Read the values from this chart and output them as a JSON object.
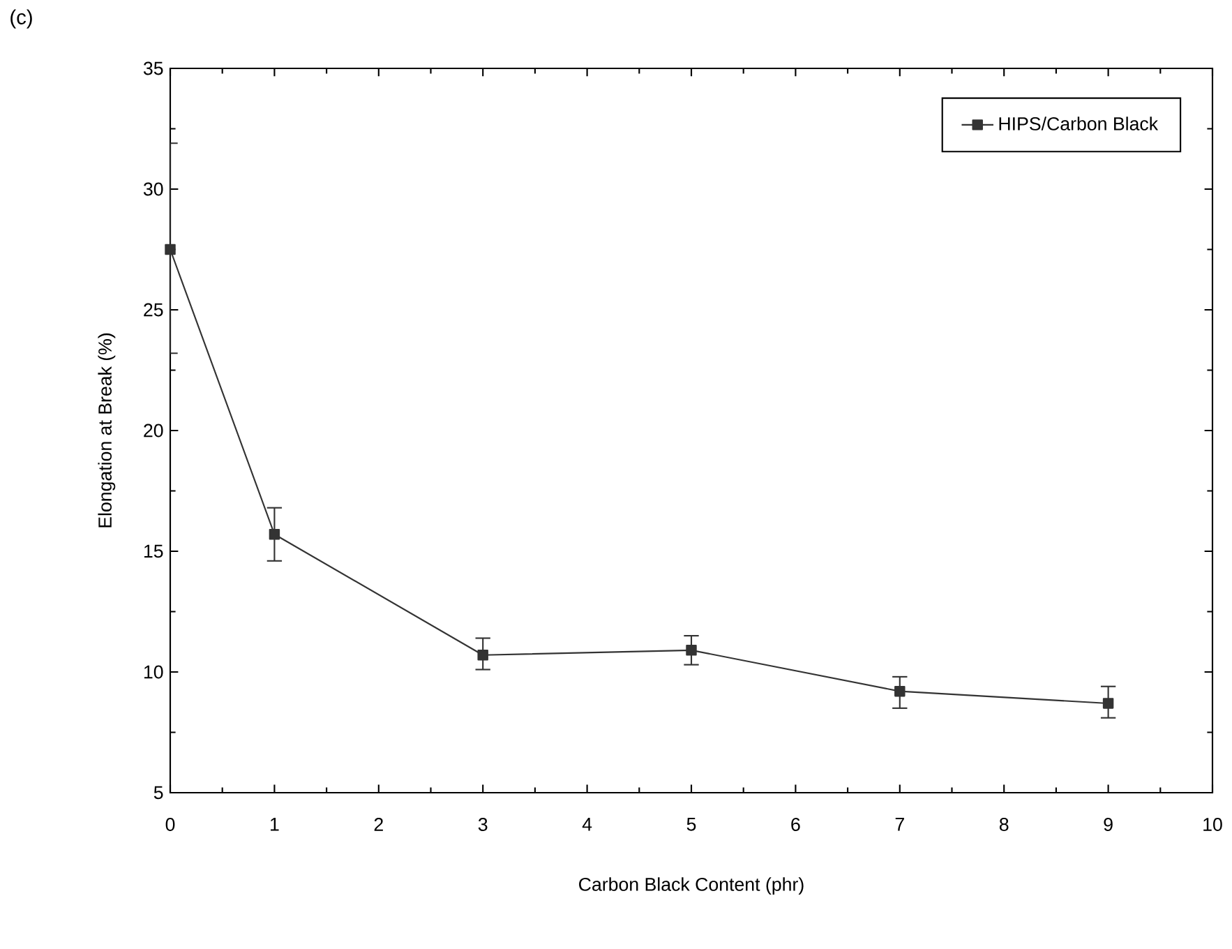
{
  "chart_data": {
    "type": "line",
    "xlabel": "Carbon Black Content (phr)",
    "ylabel": "Elongation at Break (%)",
    "annotations": [
      "(c)"
    ],
    "x": [
      0,
      1,
      3,
      5,
      7,
      9
    ],
    "series": [
      {
        "name": "HIPS/Carbon Black",
        "color": "#333333",
        "values": [
          27.5,
          15.7,
          10.7,
          10.9,
          9.2,
          8.7
        ],
        "errors": [
          [
            23.2,
            31.9
          ],
          [
            14.6,
            16.8
          ],
          [
            10.1,
            11.4
          ],
          [
            10.3,
            11.5
          ],
          [
            8.5,
            9.8
          ],
          [
            8.1,
            9.4
          ]
        ]
      }
    ],
    "xlim": [
      0,
      10
    ],
    "xticks": [
      0,
      1,
      2,
      3,
      4,
      5,
      6,
      7,
      8,
      9,
      10
    ],
    "ylim": [
      5,
      35
    ],
    "yticks": [
      5,
      10,
      15,
      20,
      25,
      30,
      35
    ],
    "grid": false,
    "legend": "top right",
    "marker": "square",
    "line_style": "solid"
  }
}
